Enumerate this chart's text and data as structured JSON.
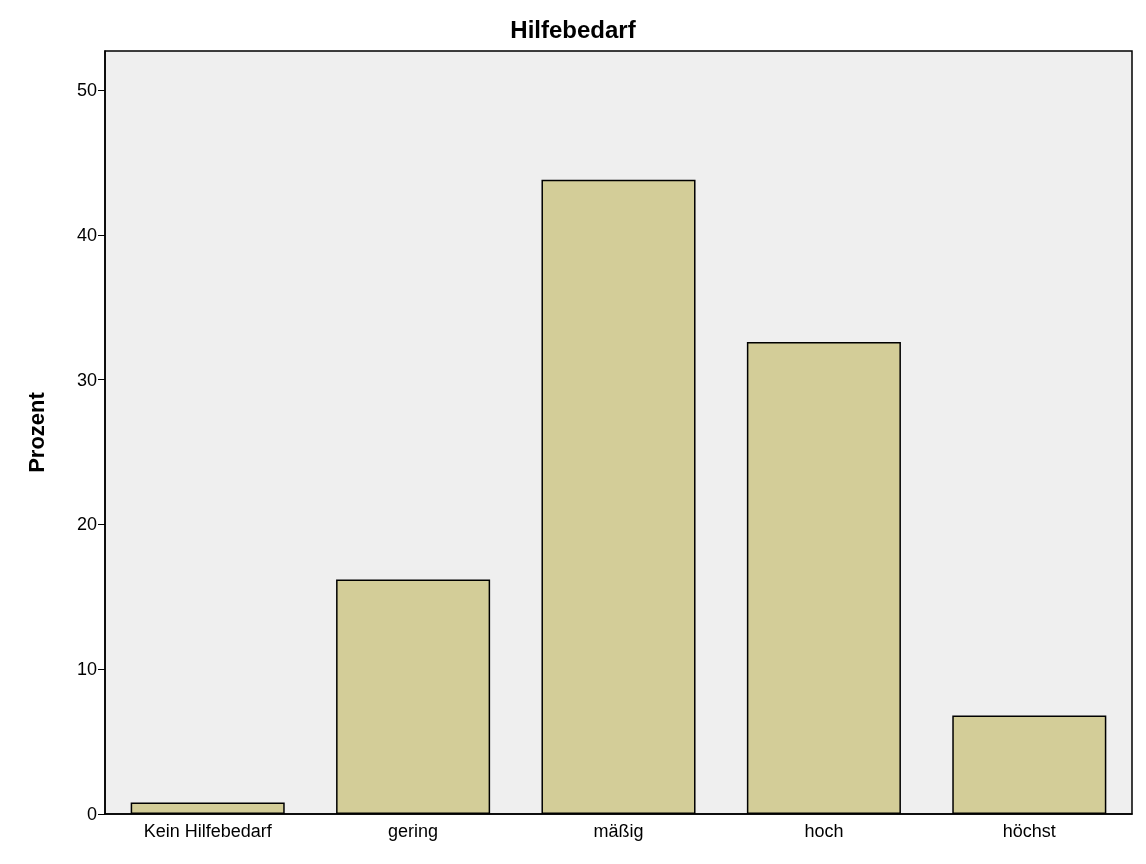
{
  "chart_data": {
    "type": "bar",
    "title": "Hilfebedarf",
    "ylabel": "Prozent",
    "categories": [
      "Kein Hilfebedarf",
      "gering",
      "mäßig",
      "hoch",
      "höchst"
    ],
    "values": [
      0.8,
      16.2,
      43.8,
      32.6,
      6.8
    ],
    "color": "#d3cd98",
    "ylim": [
      0,
      52.7
    ],
    "yticks": [
      0,
      10,
      20,
      30,
      40,
      50
    ],
    "grid": false
  }
}
